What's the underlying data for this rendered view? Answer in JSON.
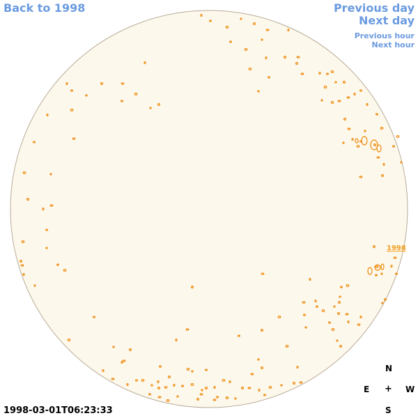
{
  "nav": {
    "back": "Back to 1998",
    "previous_day": "Previous day",
    "next_day": "Next day",
    "previous_hour": "Previous hour",
    "next_hour": "Next hour"
  },
  "timestamp": "1998-03-01T06:23:33",
  "compass": {
    "n": "N",
    "s": "S",
    "e": "E",
    "w": "W",
    "center": "+"
  },
  "region_label": "1998",
  "colors": {
    "disk_fill": "#fdf8ec",
    "disk_edge": "#b8ac98",
    "contour": "#ee8a0c",
    "nav": "#6b9be0"
  }
}
